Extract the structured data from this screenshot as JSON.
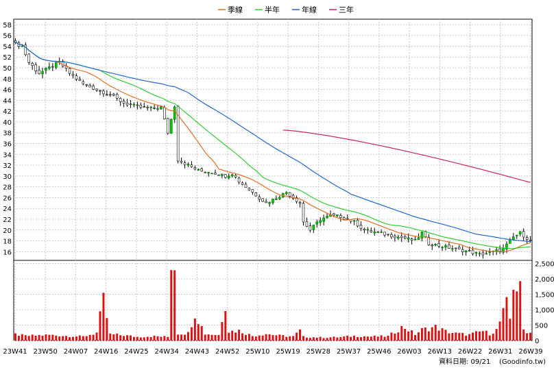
{
  "chart_data": {
    "type": "candlestick",
    "legend": [
      {
        "label": "季線",
        "color": "#e07020"
      },
      {
        "label": "半年",
        "color": "#33cc33"
      },
      {
        "label": "年線",
        "color": "#2266cc"
      },
      {
        "label": "三年",
        "color": "#cc2266"
      }
    ],
    "price_axis": {
      "ticks": [
        16,
        18,
        20,
        22,
        24,
        26,
        28,
        30,
        32,
        34,
        36,
        38,
        40,
        42,
        44,
        46,
        48,
        50,
        52,
        54,
        56,
        58
      ],
      "ylim": [
        14.4,
        59
      ]
    },
    "volume_axis": {
      "ticks": [
        0,
        500,
        1000,
        1500,
        2000,
        2500
      ],
      "tick_labels": [
        "0",
        "500",
        "1,000",
        "1,500",
        "2,000",
        "2,500"
      ],
      "ylim": [
        0,
        2600
      ]
    },
    "x_labels": [
      "23W41",
      "23W50",
      "24W07",
      "24W16",
      "24W25",
      "24W34",
      "24W43",
      "24W52",
      "25W10",
      "25W19",
      "25W28",
      "25W37",
      "25W46",
      "26W03",
      "26W13",
      "26W22",
      "26W31",
      "26W39"
    ],
    "n_weeks": 153,
    "close_anchors": [
      [
        0,
        54.5
      ],
      [
        2,
        54
      ],
      [
        4,
        51
      ],
      [
        7,
        49
      ],
      [
        10,
        50
      ],
      [
        13,
        51
      ],
      [
        16,
        49
      ],
      [
        20,
        47
      ],
      [
        24,
        46
      ],
      [
        28,
        45
      ],
      [
        32,
        43.5
      ],
      [
        36,
        42.8
      ],
      [
        40,
        42.5
      ],
      [
        43,
        42.7
      ],
      [
        45,
        38
      ],
      [
        47,
        43
      ],
      [
        48,
        33
      ],
      [
        51,
        32
      ],
      [
        54,
        31
      ],
      [
        58,
        30.7
      ],
      [
        62,
        30
      ],
      [
        64,
        30.5
      ],
      [
        66,
        29
      ],
      [
        69,
        27.5
      ],
      [
        72,
        26
      ],
      [
        74,
        25
      ],
      [
        77,
        26
      ],
      [
        80,
        27
      ],
      [
        82,
        26
      ],
      [
        84,
        25
      ],
      [
        85,
        21.5
      ],
      [
        87,
        20
      ],
      [
        90,
        22
      ],
      [
        93,
        22.7
      ],
      [
        96,
        22.5
      ],
      [
        100,
        21.5
      ],
      [
        103,
        20
      ],
      [
        107,
        19.5
      ],
      [
        111,
        19
      ],
      [
        115,
        18.5
      ],
      [
        118,
        18
      ],
      [
        120,
        19.5
      ],
      [
        122,
        17.5
      ],
      [
        126,
        17
      ],
      [
        130,
        16.5
      ],
      [
        134,
        16
      ],
      [
        137,
        15.5
      ],
      [
        140,
        15.8
      ],
      [
        144,
        16.5
      ],
      [
        147,
        18.7
      ],
      [
        149,
        19.5
      ],
      [
        151,
        18.5
      ],
      [
        152,
        18
      ]
    ],
    "vol_anchors": [
      [
        0,
        200
      ],
      [
        3,
        150
      ],
      [
        10,
        180
      ],
      [
        13,
        160
      ],
      [
        20,
        130
      ],
      [
        24,
        250
      ],
      [
        26,
        1280
      ],
      [
        28,
        200
      ],
      [
        32,
        170
      ],
      [
        36,
        120
      ],
      [
        40,
        140
      ],
      [
        45,
        120
      ],
      [
        46,
        2650
      ],
      [
        47,
        2520
      ],
      [
        48,
        230
      ],
      [
        51,
        240
      ],
      [
        53,
        900
      ],
      [
        56,
        220
      ],
      [
        60,
        180
      ],
      [
        62,
        1250
      ],
      [
        63,
        300
      ],
      [
        66,
        320
      ],
      [
        70,
        150
      ],
      [
        74,
        220
      ],
      [
        78,
        160
      ],
      [
        82,
        130
      ],
      [
        84,
        320
      ],
      [
        85,
        120
      ],
      [
        90,
        100
      ],
      [
        96,
        110
      ],
      [
        100,
        150
      ],
      [
        105,
        130
      ],
      [
        110,
        140
      ],
      [
        114,
        420
      ],
      [
        115,
        420
      ],
      [
        118,
        200
      ],
      [
        120,
        350
      ],
      [
        124,
        440
      ],
      [
        127,
        300
      ],
      [
        130,
        230
      ],
      [
        134,
        190
      ],
      [
        138,
        310
      ],
      [
        140,
        220
      ],
      [
        142,
        340
      ],
      [
        145,
        1150
      ],
      [
        146,
        700
      ],
      [
        147,
        1880
      ],
      [
        149,
        1600
      ],
      [
        150,
        350
      ],
      [
        152,
        250
      ]
    ],
    "ma_start": {
      "季線": 0,
      "半年": 0,
      "年線": 0,
      "三年": 79
    },
    "ma_end": {
      "季線": 17.0,
      "半年": 16.6,
      "年線": 17.8,
      "三年": 28.8
    }
  },
  "footer": {
    "date_text": "資料日期: 09/21",
    "source_text": "(Goodinfo.tw)"
  }
}
